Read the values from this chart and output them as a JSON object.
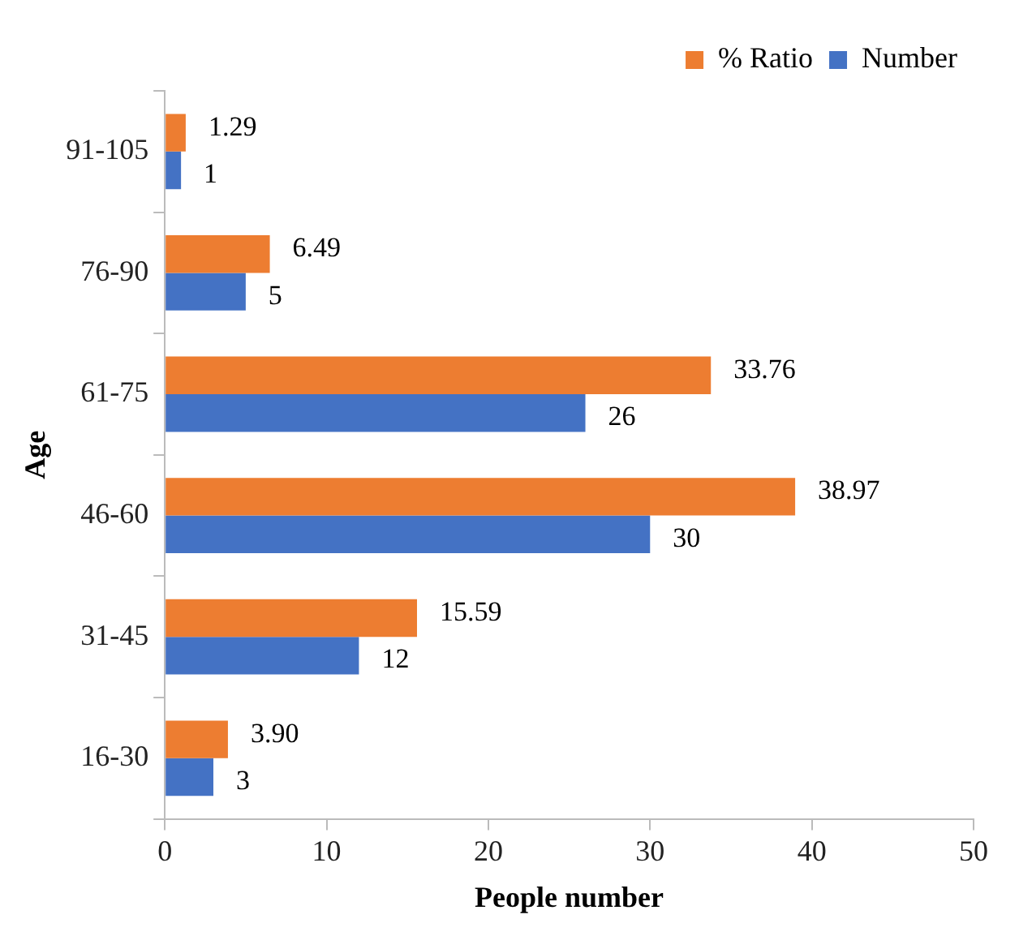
{
  "chart_data": {
    "type": "bar",
    "orientation": "horizontal",
    "xlabel": "People number",
    "ylabel": "Age",
    "categories": [
      "91-105",
      "76-90",
      "61-75",
      "46-60",
      "31-45",
      "16-30"
    ],
    "series": [
      {
        "name": "% Ratio",
        "color": "#ed7d31",
        "values": [
          1.29,
          6.49,
          33.76,
          38.97,
          15.59,
          3.9
        ],
        "value_labels": [
          "1.29",
          "6.49",
          "33.76",
          "38.97",
          "15.59",
          "3.90"
        ]
      },
      {
        "name": "Number",
        "color": "#4472c4",
        "values": [
          1,
          5,
          26,
          30,
          12,
          3
        ],
        "value_labels": [
          "1",
          "5",
          "26",
          "30",
          "12",
          "3"
        ]
      }
    ],
    "xlim": [
      0,
      50
    ],
    "xticks": [
      0,
      10,
      20,
      30,
      40,
      50
    ],
    "grid": false,
    "legend": "top right"
  }
}
